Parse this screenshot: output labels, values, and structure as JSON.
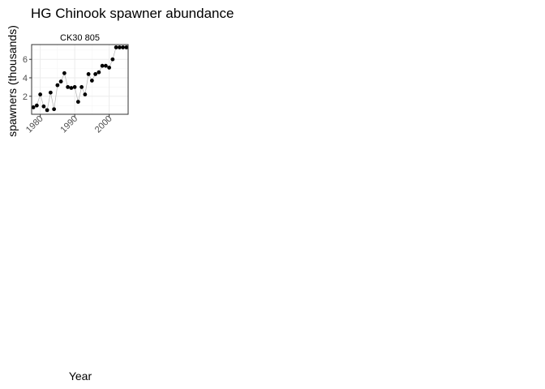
{
  "chart_data": {
    "type": "scatter",
    "title": "HG Chinook spawner abundance",
    "xlabel": "Year",
    "ylabel": "spawners (thousands)",
    "panel": {
      "strip_label": "CK30 805",
      "xlim": [
        1977.5,
        2005.5
      ],
      "ylim": [
        0.05,
        7.6
      ],
      "x_ticks": [
        1980,
        1990,
        2000
      ],
      "y_ticks": [
        2,
        4,
        6
      ],
      "grid": true,
      "connect_points": true,
      "x": [
        1978,
        1979,
        1980,
        1981,
        1982,
        1983,
        1984,
        1985,
        1986,
        1987,
        1988,
        1989,
        1990,
        1991,
        1992,
        1993,
        1994,
        1995,
        1996,
        1997,
        1998,
        1999,
        2000,
        2001,
        2002,
        2003,
        2004,
        2005
      ],
      "y": [
        0.8,
        1.0,
        2.2,
        0.9,
        0.5,
        2.4,
        0.6,
        3.2,
        3.6,
        4.5,
        3.0,
        2.9,
        3.0,
        1.4,
        3.0,
        2.2,
        4.4,
        3.7,
        4.4,
        4.6,
        5.3,
        5.3,
        5.1,
        6.0,
        7.3,
        7.3,
        7.3,
        7.3
      ]
    }
  }
}
